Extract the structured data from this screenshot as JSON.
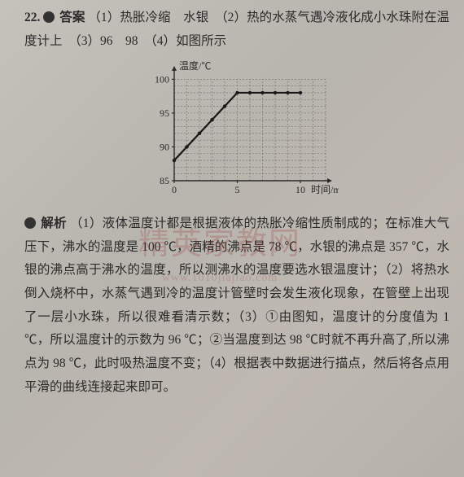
{
  "question_number": "22.",
  "answer_label": "答案",
  "analysis_label": "解析",
  "answer_parts": {
    "p1a": "热胀冷缩",
    "p1b": "水银",
    "p2": "热的水蒸气遇冷液化成小水珠附在温度计上",
    "p3a": "96",
    "p3b": "98",
    "p4": "如图所示"
  },
  "chart": {
    "type": "line",
    "y_label": "温度/℃",
    "x_label": "时间/min",
    "y_ticks": [
      85,
      90,
      95,
      100
    ],
    "x_ticks": [
      0,
      5,
      10
    ],
    "xlim": [
      0,
      12
    ],
    "ylim": [
      85,
      101
    ],
    "bg_color": "#bdbab3",
    "axis_color": "#2a2a2a",
    "grid_color": "#6a6a6a",
    "line_color": "#1a1a1a",
    "line_width": 2.2,
    "axis_fontsize": 12,
    "tick_fontsize": 12,
    "data_points": [
      {
        "x": 0,
        "y": 88
      },
      {
        "x": 1,
        "y": 90
      },
      {
        "x": 2,
        "y": 92
      },
      {
        "x": 3,
        "y": 94
      },
      {
        "x": 4,
        "y": 96
      },
      {
        "x": 5,
        "y": 98
      },
      {
        "x": 6,
        "y": 98
      },
      {
        "x": 7,
        "y": 98
      },
      {
        "x": 8,
        "y": 98
      },
      {
        "x": 9,
        "y": 98
      },
      {
        "x": 10,
        "y": 98
      }
    ]
  },
  "analysis_text": "（1）液体温度计都是根据液体的热胀冷缩性质制成的；在标准大气压下，沸水的温度是 100 ℃，酒精的沸点是 78 ℃，水银的沸点是 357 ℃，水银的沸点高于沸水的温度，所以测沸水的温度要选水银温度计；（2）将热水倒入烧杯中，水蒸气遇到冷的温度计管壁时会发生液化现象，在管壁上出现了一层小水珠，所以很难看清示数；（3）①由图知，温度计的分度值为 1 ℃，所以温度计的示数为 96 ℃；②当温度到达 98 ℃时就不再升高了,所以沸点为 98 ℃，此时吸热温度不变；（4）根据表中数据进行描点，然后将各点用平滑的曲线连接起来即可。",
  "watermark": {
    "main": "精英家教网",
    "sub": "www.1010jiajiao.com"
  }
}
